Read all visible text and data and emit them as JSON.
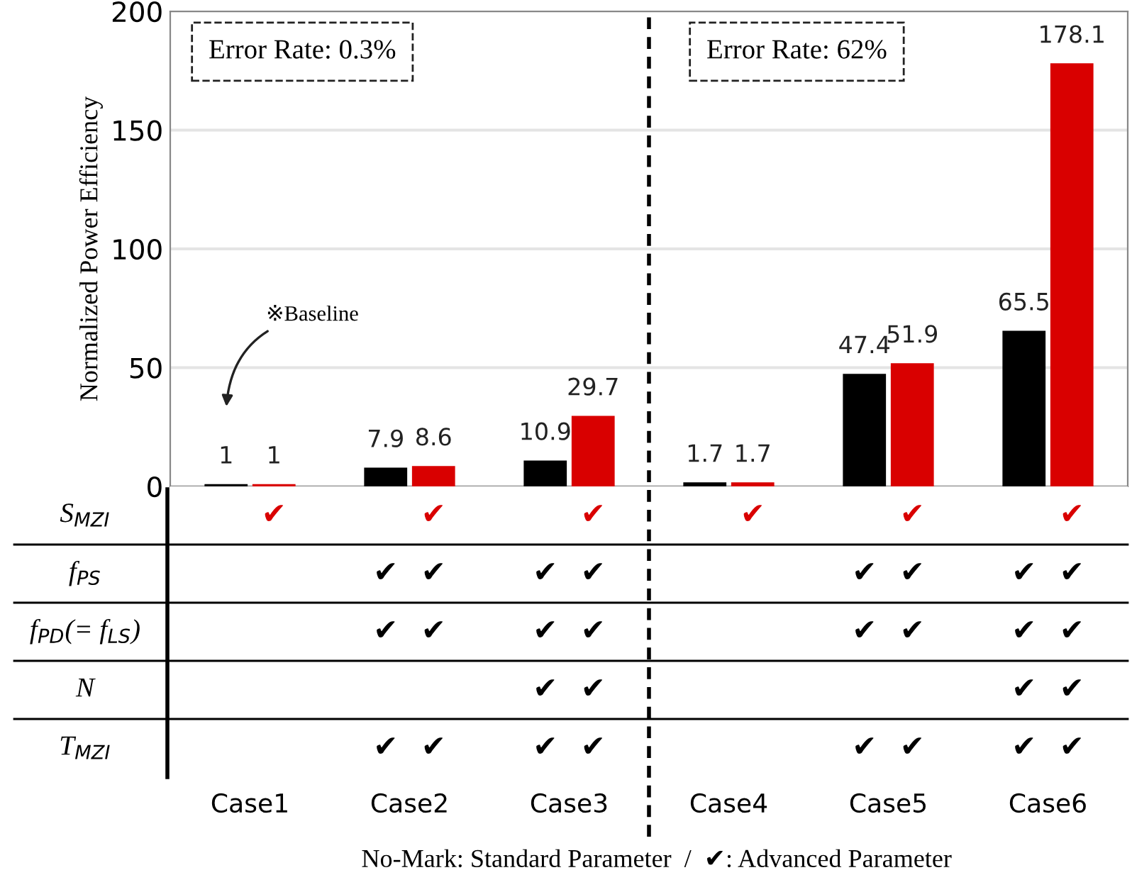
{
  "chart_data": [
    {
      "type": "bar",
      "ylabel": "Normalized Power Efficiency",
      "categories": [
        null,
        null,
        null,
        null,
        null,
        null
      ],
      "series": [
        {
          "color": "#000000",
          "values": [
            1,
            7.9,
            10.9,
            1.7,
            47.4,
            65.5
          ]
        },
        {
          "color": "#d90000",
          "values": [
            1,
            8.6,
            29.7,
            1.7,
            51.9,
            178.1
          ]
        }
      ],
      "ylim": [
        0,
        200
      ],
      "yticks": [
        0,
        50,
        100,
        150,
        200
      ],
      "grid": "y",
      "data_labels": true,
      "tick_labels": "y",
      "annotations": [
        "Error Rate: 0.3%",
        "Error Rate: 62%",
        "※Baseline"
      ]
    },
    {
      "type": "other",
      "categories": [
        "Case1",
        "Case2",
        "Case3",
        "Case4",
        "Case5",
        "Case6"
      ],
      "y_categories": [
        "S$_{MZI}$",
        "f$_{PS}$",
        "f$_{PD}$(= f$_{LS}$)",
        "N",
        "T$_{MZI}$"
      ],
      "colors": [
        "#d90000",
        "#000000",
        "#000000",
        "#000000",
        "#000000"
      ],
      "cell_labels": [
        [
          null,
          "✔",
          null,
          "✔",
          null,
          "✔",
          null,
          "✔",
          null,
          "✔",
          null,
          "✔"
        ],
        [
          null,
          null,
          "✔",
          "✔",
          "✔",
          "✔",
          null,
          null,
          "✔",
          "✔",
          "✔",
          "✔"
        ],
        [
          null,
          null,
          "✔",
          "✔",
          "✔",
          "✔",
          null,
          null,
          "✔",
          "✔",
          "✔",
          "✔"
        ],
        [
          null,
          null,
          null,
          null,
          "✔",
          "✔",
          null,
          null,
          null,
          null,
          "✔",
          "✔"
        ],
        [
          null,
          null,
          "✔",
          "✔",
          "✔",
          "✔",
          null,
          null,
          "✔",
          "✔",
          "✔",
          "✔"
        ]
      ],
      "annotations": [
        "No-Mark: Standard Parameter  /  ✔: Advanced Parameter"
      ]
    }
  ]
}
